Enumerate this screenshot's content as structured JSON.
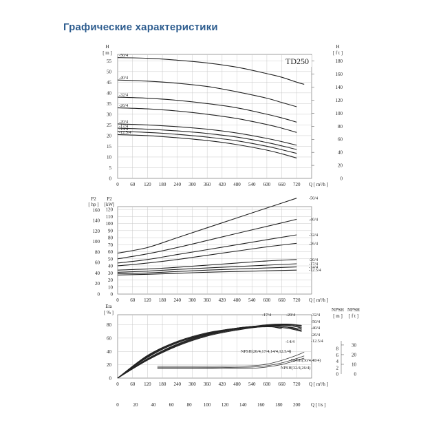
{
  "page": {
    "title": "Графические характеристики"
  },
  "chart_data": [
    {
      "type": "line",
      "panel": "head",
      "model_label": "TD250",
      "left_unit": "[ m ]",
      "left_symbol": "H",
      "right_unit": "[ f t ]",
      "right_symbol": "H",
      "x_unit": "Q  [ m³/h ]",
      "x_ticks": [
        "0",
        "60",
        "120",
        "180",
        "240",
        "300",
        "360",
        "420",
        "480",
        "540",
        "600",
        "660",
        "720"
      ],
      "y_ticks": [
        "5",
        "10",
        "15",
        "20",
        "25",
        "30",
        "35",
        "40",
        "45",
        "50",
        "55"
      ],
      "y2_ticks": [
        "20",
        "40",
        "60",
        "80",
        "100",
        "120",
        "140",
        "160",
        "180"
      ],
      "xlim": [
        0,
        780
      ],
      "ylim": [
        0,
        58
      ],
      "grid": true,
      "series": [
        {
          "name": "-50/4",
          "x": [
            0,
            120,
            240,
            360,
            480,
            600,
            660,
            720,
            750
          ],
          "y": [
            56.5,
            56.2,
            55.3,
            54,
            52,
            49,
            47.3,
            45,
            44
          ]
        },
        {
          "name": "-40/4",
          "x": [
            0,
            120,
            240,
            360,
            480,
            600,
            660,
            720
          ],
          "y": [
            46,
            45.5,
            44.5,
            43,
            40.5,
            37.5,
            35.5,
            33.5
          ]
        },
        {
          "name": "-32/4",
          "x": [
            0,
            120,
            240,
            360,
            480,
            600,
            660,
            720
          ],
          "y": [
            38,
            37.5,
            36.5,
            35,
            33,
            30,
            28.3,
            26.3
          ]
        },
        {
          "name": "-26/4",
          "x": [
            0,
            120,
            240,
            360,
            480,
            600,
            660,
            720
          ],
          "y": [
            33,
            32.5,
            31.5,
            30,
            28,
            25.2,
            23.5,
            21.5
          ]
        },
        {
          "name": "-20/4",
          "x": [
            0,
            120,
            240,
            360,
            480,
            600,
            660,
            720
          ],
          "y": [
            25.5,
            25,
            24.2,
            23,
            21.2,
            18.7,
            17.2,
            15.5
          ]
        },
        {
          "name": "-17/4",
          "x": [
            0,
            120,
            240,
            360,
            480,
            600,
            660,
            720
          ],
          "y": [
            23.5,
            23,
            22.2,
            21,
            19.3,
            16.8,
            15.2,
            13.5
          ]
        },
        {
          "name": "-14/4",
          "x": [
            0,
            120,
            240,
            360,
            480,
            600,
            660,
            720
          ],
          "y": [
            22,
            21.5,
            20.6,
            19.3,
            17.6,
            15,
            13.4,
            11.7
          ]
        },
        {
          "name": "-12.5/4",
          "x": [
            0,
            120,
            240,
            360,
            480,
            600,
            660,
            720
          ],
          "y": [
            20.5,
            20,
            19,
            17.7,
            15.8,
            13.2,
            11.5,
            9.5
          ]
        }
      ]
    },
    {
      "type": "line",
      "panel": "power",
      "left_symbol": "P2",
      "left_unit": "[ hp ]",
      "second_symbol": "P2",
      "second_unit": "[kW]",
      "x_unit": "Q  [ m³/h ]",
      "x_ticks": [
        "0",
        "60",
        "120",
        "180",
        "240",
        "300",
        "360",
        "420",
        "480",
        "540",
        "600",
        "660",
        "720"
      ],
      "kw_ticks": [
        "10",
        "20",
        "30",
        "40",
        "50",
        "60",
        "70",
        "80",
        "90",
        "100",
        "110",
        "120"
      ],
      "hp_ticks": [
        "20",
        "40",
        "60",
        "80",
        "100",
        "120",
        "140",
        "160"
      ],
      "xlim": [
        0,
        780
      ],
      "ylim": [
        0,
        124
      ],
      "grid": true,
      "series": [
        {
          "name": "-50/4",
          "x": [
            0,
            120,
            240,
            360,
            480,
            600,
            720
          ],
          "y": [
            58,
            66,
            80,
            94,
            108,
            122,
            136
          ]
        },
        {
          "name": "-40/4",
          "x": [
            0,
            120,
            240,
            360,
            480,
            600,
            720
          ],
          "y": [
            50,
            57,
            66,
            76,
            86,
            96,
            106
          ]
        },
        {
          "name": "-32/4",
          "x": [
            0,
            120,
            240,
            360,
            480,
            600,
            720
          ],
          "y": [
            44,
            49,
            56,
            63,
            70,
            77,
            84
          ]
        },
        {
          "name": "-26/4",
          "x": [
            0,
            120,
            240,
            360,
            480,
            600,
            720
          ],
          "y": [
            40,
            44,
            49,
            55,
            61,
            67,
            72
          ]
        },
        {
          "name": "-20/4",
          "x": [
            0,
            120,
            240,
            360,
            480,
            600,
            720
          ],
          "y": [
            34,
            35.5,
            38,
            41,
            44,
            47,
            49
          ]
        },
        {
          "name": "-17/4",
          "x": [
            0,
            120,
            240,
            360,
            480,
            600,
            720
          ],
          "y": [
            31,
            32.5,
            35,
            37,
            39,
            41,
            43
          ]
        },
        {
          "name": "-14/4",
          "x": [
            0,
            120,
            240,
            360,
            480,
            600,
            720
          ],
          "y": [
            29,
            30,
            32,
            34,
            35.5,
            37,
            38.5
          ]
        },
        {
          "name": "-12.5/4",
          "x": [
            0,
            120,
            240,
            360,
            480,
            600,
            720
          ],
          "y": [
            27,
            28,
            29.5,
            31,
            32,
            33,
            34
          ]
        }
      ]
    },
    {
      "type": "line",
      "panel": "efficiency",
      "left_symbol": "Eta",
      "left_unit": "[ % ]",
      "npsh_symbol": "NPSH",
      "npsh_m_unit": "[ m ]",
      "npsh_ft_unit": "[ f t ]",
      "x_unit": "Q  [ m³/h ]",
      "x2_unit": "Q  [ l/s ]",
      "x_ticks": [
        "0",
        "60",
        "120",
        "180",
        "240",
        "300",
        "360",
        "420",
        "480",
        "540",
        "600",
        "660",
        "720"
      ],
      "x2_ticks": [
        "0",
        "20",
        "40",
        "60",
        "80",
        "100",
        "120",
        "140",
        "160",
        "180",
        "200"
      ],
      "eta_ticks": [
        "20",
        "40",
        "60",
        "80"
      ],
      "npsh_m_ticks": [
        "2",
        "4",
        "6",
        "8"
      ],
      "npsh_ft_ticks": [
        "10",
        "20",
        "30"
      ],
      "xlim": [
        0,
        780
      ],
      "ylim": [
        0,
        95
      ],
      "npsh_lim": [
        0,
        10
      ],
      "grid": true,
      "series": [
        {
          "name": "-17/4",
          "x": [
            0,
            120,
            240,
            360,
            480,
            560,
            640,
            700,
            740
          ],
          "y": [
            0,
            34,
            55,
            68,
            75,
            78,
            78,
            75,
            71
          ]
        },
        {
          "name": "-20/4",
          "x": [
            0,
            120,
            240,
            360,
            480,
            600,
            660,
            720,
            740
          ],
          "y": [
            0,
            32,
            53,
            67,
            75,
            79,
            80,
            77,
            74
          ]
        },
        {
          "name": "-32/4",
          "x": [
            0,
            120,
            240,
            360,
            480,
            600,
            680,
            740
          ],
          "y": [
            0,
            28,
            50,
            65,
            74,
            80,
            81,
            79
          ]
        },
        {
          "name": "-50/4",
          "x": [
            0,
            120,
            240,
            360,
            480,
            600,
            690,
            740
          ],
          "y": [
            0,
            27,
            49,
            64,
            73,
            79,
            80,
            78
          ]
        },
        {
          "name": "-40/4",
          "x": [
            0,
            120,
            240,
            360,
            480,
            600,
            690,
            740
          ],
          "y": [
            0,
            27,
            48,
            63,
            72,
            78,
            79,
            76
          ]
        },
        {
          "name": "-26/4",
          "x": [
            0,
            120,
            240,
            360,
            480,
            600,
            680,
            740
          ],
          "y": [
            0,
            29,
            51,
            66,
            74,
            78,
            77,
            73
          ]
        },
        {
          "name": "-14/4",
          "x": [
            0,
            120,
            240,
            360,
            480,
            560,
            620,
            660
          ],
          "y": [
            0,
            33,
            54,
            67,
            75,
            78,
            77,
            74
          ]
        },
        {
          "name": "-12.5/4",
          "x": [
            0,
            120,
            240,
            360,
            480,
            600,
            680,
            740
          ],
          "y": [
            0,
            31,
            53,
            66,
            74,
            77,
            75,
            70
          ]
        }
      ],
      "npsh_series": [
        {
          "name": "NPSH(20/4,17/4,14/4,12.5/4)",
          "x": [
            160,
            300,
            420,
            540,
            600,
            660,
            720,
            750
          ],
          "y": [
            2.4,
            2.4,
            2.45,
            2.6,
            3.1,
            4.3,
            5.9,
            6.9
          ]
        },
        {
          "name": "NPSH(50/4,40/4)",
          "x": [
            160,
            300,
            420,
            540,
            600,
            660,
            720,
            750
          ],
          "y": [
            2.0,
            2.0,
            2.05,
            2.2,
            2.6,
            3.5,
            4.9,
            5.7
          ]
        },
        {
          "name": "NPSH(32/4,26/4)",
          "x": [
            160,
            300,
            420,
            540,
            600,
            660,
            720,
            750
          ],
          "y": [
            1.6,
            1.6,
            1.65,
            1.8,
            2.2,
            3.0,
            4.3,
            5.0
          ]
        }
      ]
    }
  ]
}
